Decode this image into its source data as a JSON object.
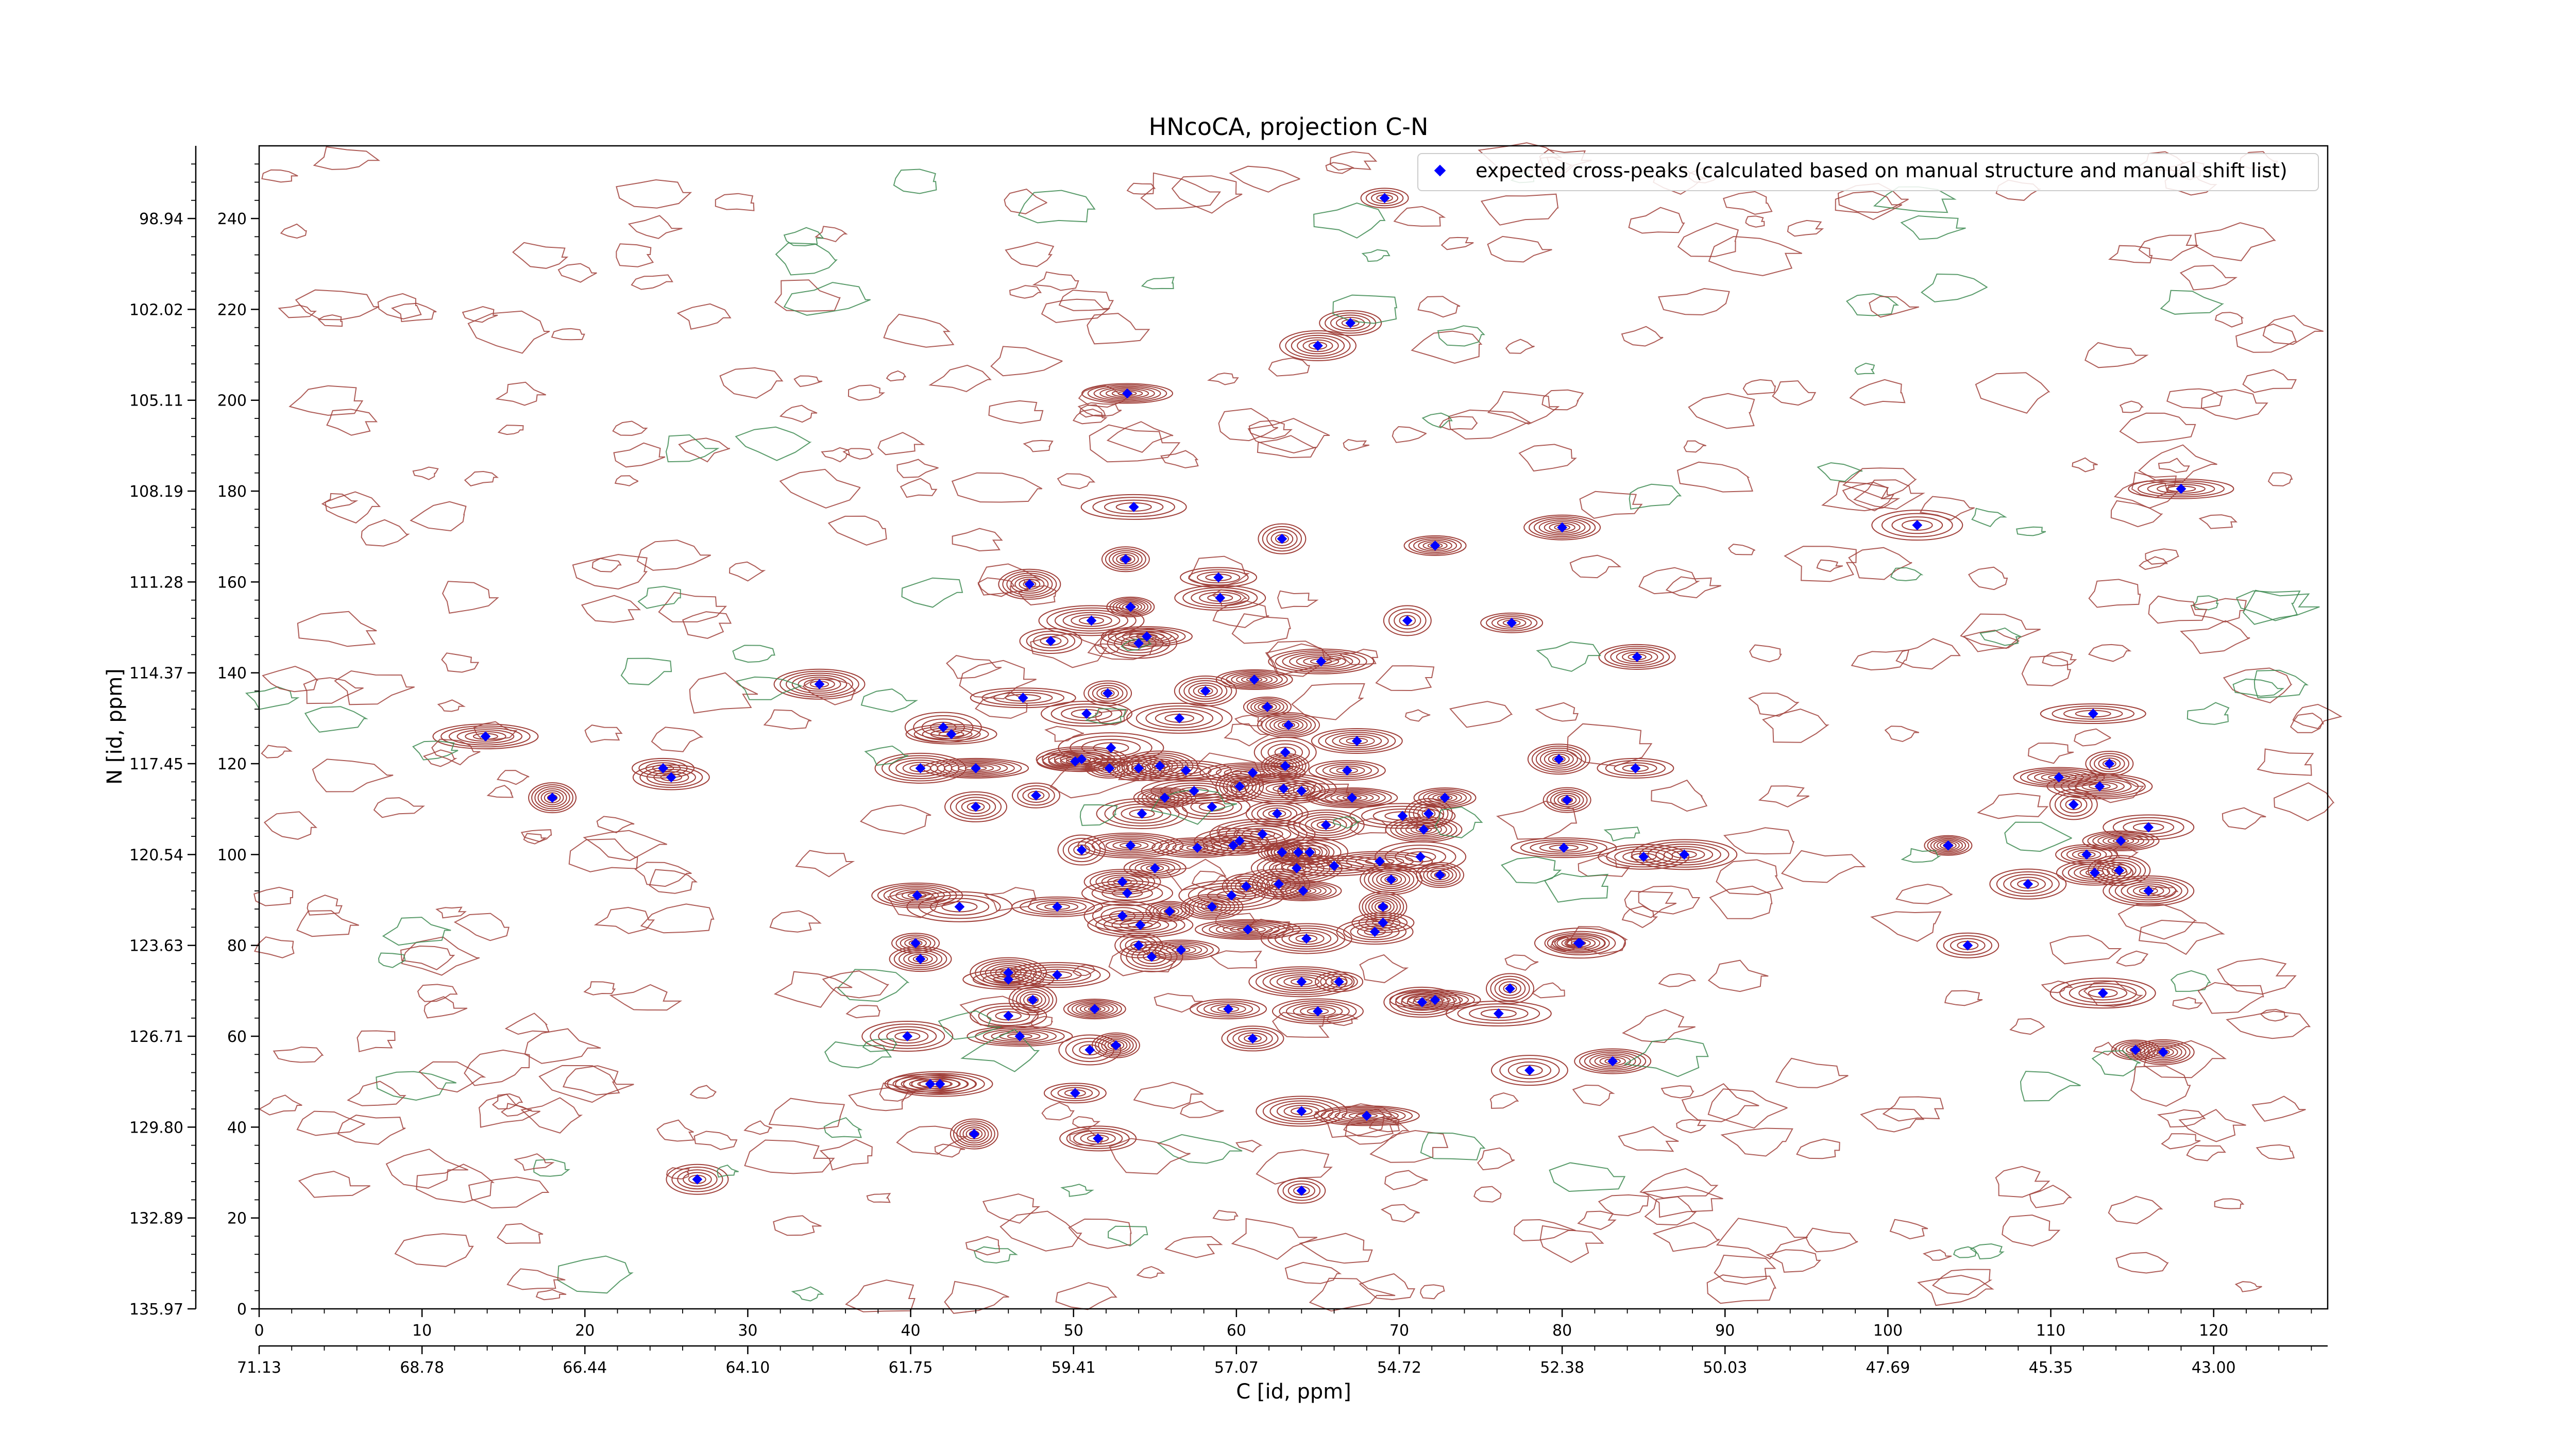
{
  "chart_data": {
    "type": "scatter",
    "title": "HNcoCA, projection C-N",
    "xlabel": "C [id, ppm]",
    "ylabel": "N [id, ppm]",
    "xlim": [
      0,
      127
    ],
    "ylim": [
      0,
      256
    ],
    "x_ticks": [
      0,
      10,
      20,
      30,
      40,
      50,
      60,
      70,
      80,
      90,
      100,
      110,
      120
    ],
    "y_ticks": [
      0,
      20,
      40,
      60,
      80,
      100,
      120,
      140,
      160,
      180,
      200,
      220,
      240
    ],
    "x_ppm_ticks": [
      "71.13",
      "68.78",
      "66.44",
      "64.10",
      "61.75",
      "59.41",
      "57.07",
      "54.72",
      "52.38",
      "50.03",
      "47.69",
      "45.35",
      "43.00"
    ],
    "y_ppm_ticks": [
      "135.97",
      "132.89",
      "129.80",
      "126.71",
      "123.63",
      "120.54",
      "117.45",
      "114.37",
      "111.28",
      "108.19",
      "105.11",
      "102.02",
      "98.94"
    ],
    "legend": {
      "label": "expected cross-peaks (calculated based on manual structure and manual shift list)",
      "position": "top-right",
      "marker_color": "#0000ff"
    },
    "colors": {
      "positive_contour": "#a0403a",
      "negative_contour": "#3c8a50",
      "marker": "#0000ff"
    },
    "series": [
      {
        "name": "expected cross-peaks (calculated based on manual structure and manual shift list)",
        "points": [
          [
            69.1,
            244.5
          ],
          [
            67.0,
            217.0
          ],
          [
            65.0,
            212.0
          ],
          [
            53.3,
            201.5
          ],
          [
            53.7,
            176.5
          ],
          [
            62.8,
            169.5
          ],
          [
            72.2,
            168.0
          ],
          [
            80.0,
            172.0
          ],
          [
            101.8,
            172.5
          ],
          [
            118.0,
            180.5
          ],
          [
            53.2,
            165.0
          ],
          [
            47.3,
            159.5
          ],
          [
            58.9,
            161.0
          ],
          [
            59.0,
            156.5
          ],
          [
            51.1,
            151.5
          ],
          [
            53.5,
            154.5
          ],
          [
            48.6,
            147.0
          ],
          [
            54.0,
            146.5
          ],
          [
            54.5,
            148.0
          ],
          [
            65.2,
            142.5
          ],
          [
            70.5,
            151.5
          ],
          [
            76.9,
            151.0
          ],
          [
            84.6,
            143.5
          ],
          [
            34.4,
            137.5
          ],
          [
            46.9,
            134.5
          ],
          [
            52.1,
            135.5
          ],
          [
            58.1,
            136.0
          ],
          [
            61.1,
            138.5
          ],
          [
            50.8,
            131.0
          ],
          [
            56.5,
            130.0
          ],
          [
            61.9,
            132.5
          ],
          [
            63.2,
            128.5
          ],
          [
            42.0,
            128.0
          ],
          [
            42.5,
            126.5
          ],
          [
            13.9,
            126.0
          ],
          [
            18.0,
            112.5
          ],
          [
            24.8,
            119.0
          ],
          [
            25.3,
            117.0
          ],
          [
            40.6,
            119.0
          ],
          [
            44.0,
            119.0
          ],
          [
            47.7,
            113.0
          ],
          [
            44.0,
            110.5
          ],
          [
            50.1,
            120.5
          ],
          [
            50.5,
            121.0
          ],
          [
            52.3,
            123.5
          ],
          [
            52.2,
            119.0
          ],
          [
            54.0,
            119.0
          ],
          [
            55.3,
            119.5
          ],
          [
            56.9,
            118.5
          ],
          [
            57.4,
            114.0
          ],
          [
            60.2,
            115.0
          ],
          [
            55.6,
            112.5
          ],
          [
            58.5,
            110.5
          ],
          [
            54.2,
            109.0
          ],
          [
            61.0,
            118.0
          ],
          [
            63.0,
            119.5
          ],
          [
            63.0,
            122.5
          ],
          [
            66.8,
            118.5
          ],
          [
            67.4,
            125.0
          ],
          [
            62.9,
            114.5
          ],
          [
            64.0,
            114.0
          ],
          [
            62.5,
            109.0
          ],
          [
            65.5,
            106.5
          ],
          [
            67.1,
            112.5
          ],
          [
            70.2,
            108.5
          ],
          [
            71.8,
            109.0
          ],
          [
            72.8,
            112.5
          ],
          [
            71.5,
            105.5
          ],
          [
            71.3,
            99.5
          ],
          [
            68.8,
            98.5
          ],
          [
            72.5,
            95.5
          ],
          [
            69.5,
            94.5
          ],
          [
            59.8,
            102.0
          ],
          [
            60.2,
            103.0
          ],
          [
            61.6,
            104.5
          ],
          [
            62.8,
            100.5
          ],
          [
            63.8,
            100.5
          ],
          [
            64.5,
            100.5
          ],
          [
            57.6,
            101.5
          ],
          [
            53.5,
            102.0
          ],
          [
            50.5,
            101.0
          ],
          [
            55.0,
            97.0
          ],
          [
            53.0,
            94.0
          ],
          [
            63.7,
            97.0
          ],
          [
            66.0,
            97.5
          ],
          [
            60.6,
            93.0
          ],
          [
            62.6,
            93.5
          ],
          [
            64.1,
            92.0
          ],
          [
            53.3,
            91.5
          ],
          [
            59.7,
            91.0
          ],
          [
            55.9,
            87.5
          ],
          [
            58.5,
            88.5
          ],
          [
            53.0,
            86.5
          ],
          [
            49.0,
            88.5
          ],
          [
            54.1,
            84.5
          ],
          [
            69.0,
            88.5
          ],
          [
            69.0,
            85.0
          ],
          [
            68.5,
            83.0
          ],
          [
            64.3,
            81.5
          ],
          [
            60.7,
            83.5
          ],
          [
            54.0,
            80.0
          ],
          [
            54.8,
            77.5
          ],
          [
            56.6,
            79.0
          ],
          [
            40.4,
            91.0
          ],
          [
            43.0,
            88.5
          ],
          [
            40.3,
            80.5
          ],
          [
            40.6,
            77.0
          ],
          [
            46.0,
            74.0
          ],
          [
            46.0,
            72.5
          ],
          [
            49.0,
            73.5
          ],
          [
            47.5,
            68.0
          ],
          [
            51.3,
            66.0
          ],
          [
            46.0,
            64.5
          ],
          [
            39.8,
            60.0
          ],
          [
            46.7,
            60.0
          ],
          [
            52.6,
            58.0
          ],
          [
            51.0,
            57.0
          ],
          [
            59.5,
            66.0
          ],
          [
            65.0,
            65.5
          ],
          [
            64.0,
            72.0
          ],
          [
            66.3,
            72.0
          ],
          [
            61.0,
            59.5
          ],
          [
            71.4,
            67.5
          ],
          [
            72.2,
            68.0
          ],
          [
            76.1,
            65.0
          ],
          [
            76.8,
            70.5
          ],
          [
            81.0,
            80.5
          ],
          [
            83.1,
            54.5
          ],
          [
            81.1,
            80.5
          ],
          [
            80.1,
            101.5
          ],
          [
            80.3,
            112.0
          ],
          [
            79.8,
            121.0
          ],
          [
            84.5,
            119.0
          ],
          [
            85.0,
            99.5
          ],
          [
            87.5,
            100.0
          ],
          [
            103.7,
            102.0
          ],
          [
            104.9,
            80.0
          ],
          [
            108.6,
            93.5
          ],
          [
            110.5,
            117.0
          ],
          [
            113.0,
            115.0
          ],
          [
            111.4,
            111.0
          ],
          [
            112.2,
            100.0
          ],
          [
            112.7,
            96.0
          ],
          [
            116.0,
            92.0
          ],
          [
            112.6,
            131.0
          ],
          [
            113.6,
            120.0
          ],
          [
            114.2,
            96.5
          ],
          [
            114.3,
            103.0
          ],
          [
            116.0,
            106.0
          ],
          [
            113.2,
            69.5
          ],
          [
            115.2,
            57.0
          ],
          [
            116.9,
            56.5
          ],
          [
            78.0,
            52.5
          ],
          [
            41.2,
            49.5
          ],
          [
            41.8,
            49.5
          ],
          [
            43.9,
            38.5
          ],
          [
            50.1,
            47.5
          ],
          [
            51.5,
            37.5
          ],
          [
            64.0,
            43.5
          ],
          [
            68.0,
            42.5
          ],
          [
            64.0,
            26.0
          ],
          [
            26.9,
            28.5
          ]
        ]
      }
    ]
  }
}
